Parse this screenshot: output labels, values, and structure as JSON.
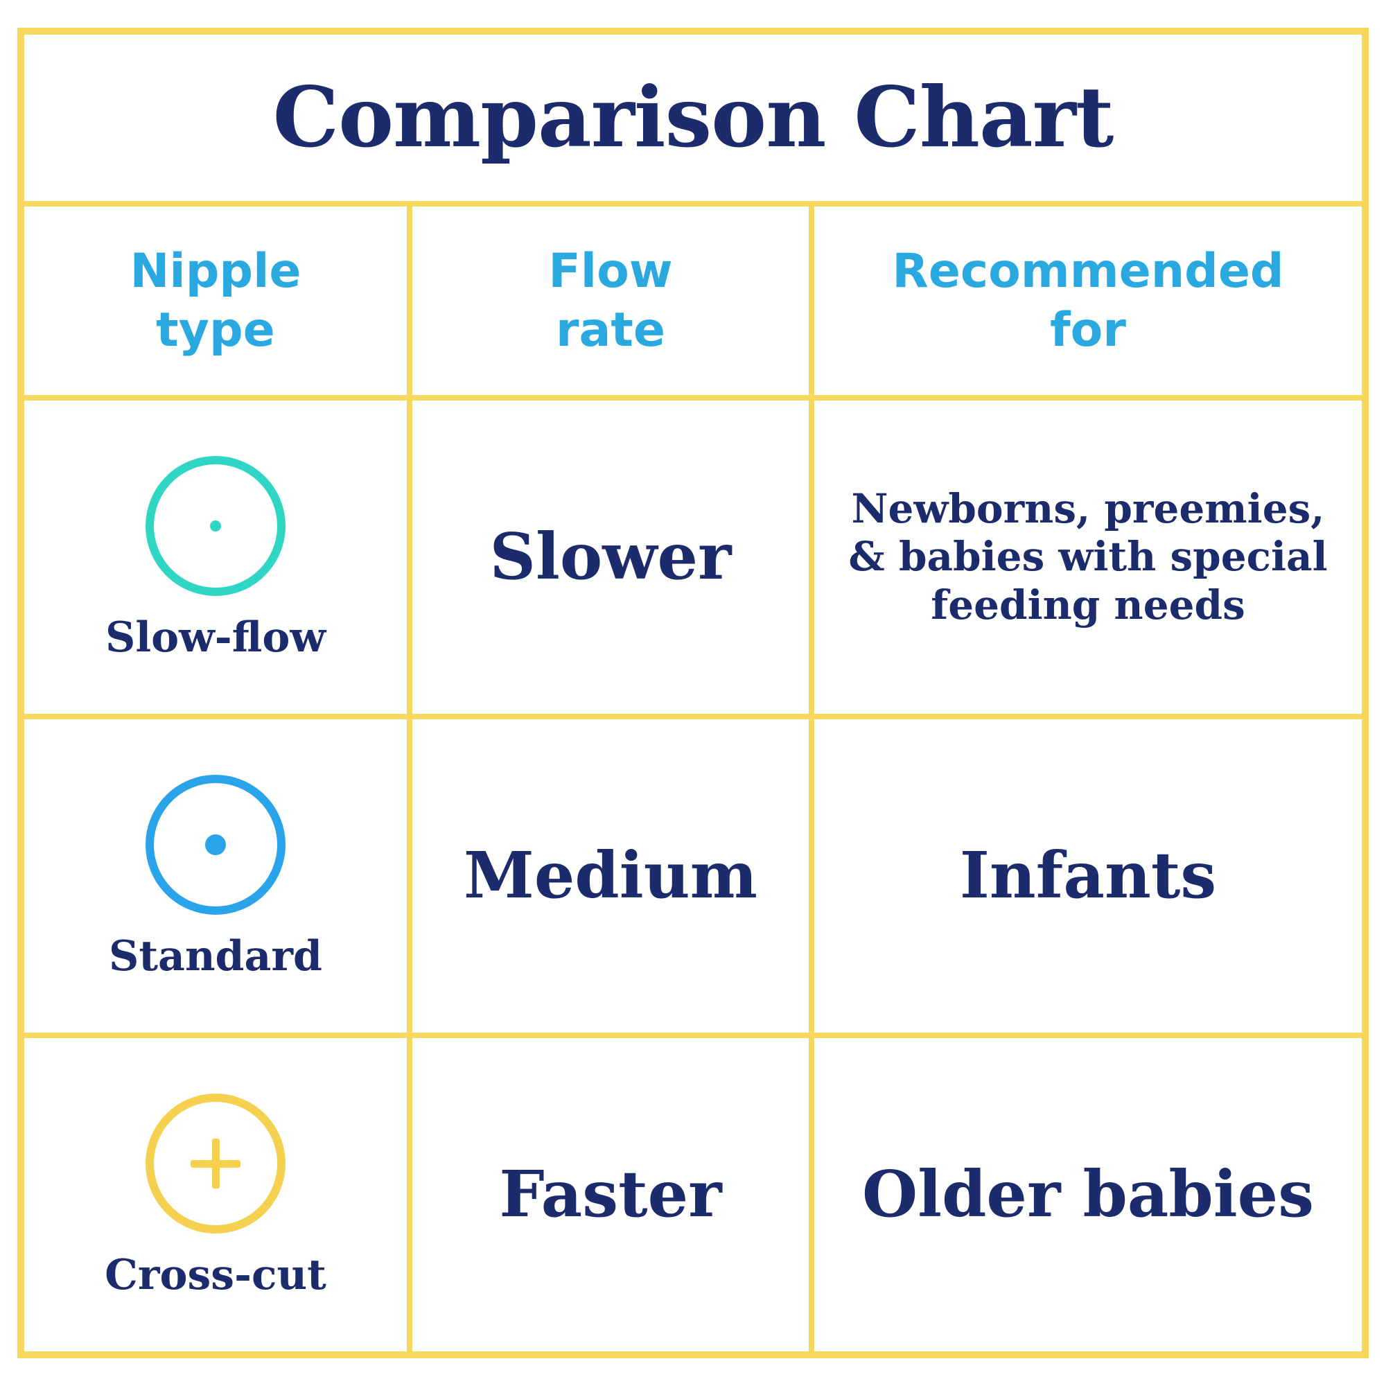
{
  "title": "Comparison Chart",
  "headers": {
    "nipple_type": "Nipple\ntype",
    "flow_rate": "Flow\nrate",
    "recommended_for": "Recommended\nfor"
  },
  "rows": [
    {
      "nipple_label": "Slow-flow",
      "icon": "slow-flow-nipple-icon",
      "hole": "small-dot",
      "icon_color": "#2FD6C4",
      "flow": "Slower",
      "recommended": "Newborns, preemies,\n& babies with special\nfeeding needs"
    },
    {
      "nipple_label": "Standard",
      "icon": "standard-nipple-icon",
      "hole": "large-dot",
      "icon_color": "#29A3E9",
      "flow": "Medium",
      "recommended": "Infants"
    },
    {
      "nipple_label": "Cross-cut",
      "icon": "cross-cut-nipple-icon",
      "hole": "cross-slit",
      "icon_color": "#F5D14F",
      "flow": "Faster",
      "recommended": "Older babies"
    }
  ],
  "colors": {
    "border_yellow": "#F8D75F",
    "navy_text": "#1B2B6B",
    "header_blue": "#2AA9E1",
    "teal_circle": "#2FD6C4",
    "blue_circle": "#29A3E9",
    "yellow_circle": "#F5D14F",
    "background": "#FFFFFF"
  },
  "chart_data": {
    "type": "table",
    "title": "Comparison Chart",
    "columns": [
      "Nipple type",
      "Flow rate",
      "Recommended for"
    ],
    "rows": [
      [
        "Slow-flow",
        "Slower",
        "Newborns, preemies, & babies with special feeding needs"
      ],
      [
        "Standard",
        "Medium",
        "Infants"
      ],
      [
        "Cross-cut",
        "Faster",
        "Older babies"
      ]
    ],
    "layout_hints": {
      "grid": true,
      "row_icons": [
        "single small hole circle",
        "single medium hole circle",
        "cross-cut circle"
      ]
    }
  }
}
